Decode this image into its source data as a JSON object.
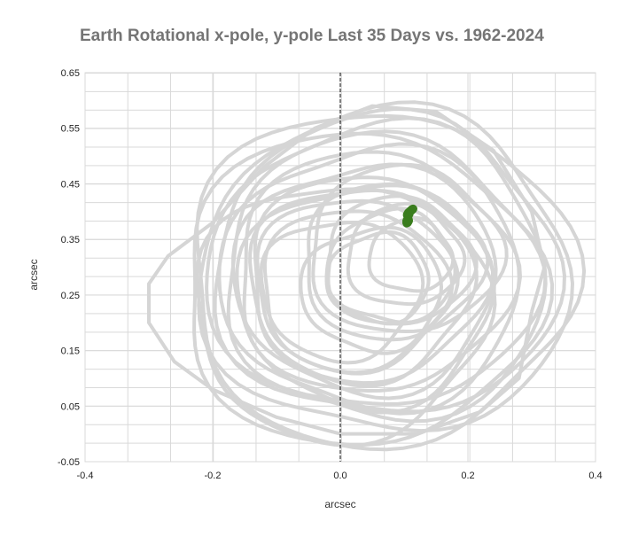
{
  "chart_data": {
    "type": "scatter",
    "title": "Earth Rotational x-pole, y-pole Last 35 Days vs. 1962-2024",
    "xlabel": "arcsec",
    "ylabel": "arcsec",
    "xlim": [
      -0.4,
      0.4
    ],
    "ylim": [
      -0.05,
      0.65
    ],
    "x_major_ticks": [
      -0.4,
      -0.2,
      0.0,
      0.2,
      0.4
    ],
    "x_tick_labels": [
      "-0.4",
      "-0.2",
      "0.0",
      "0.2",
      "0.4"
    ],
    "x_minor_step": 0.067,
    "y_ticks": [
      -0.05,
      0.05,
      0.15,
      0.25,
      0.35,
      0.45,
      0.55,
      0.65
    ],
    "y_tick_labels": [
      "-0.05",
      "0.05",
      "0.15",
      "0.25",
      "0.35",
      "0.45",
      "0.55",
      "0.65"
    ],
    "y_minor_step": 0.0333,
    "grid": true,
    "zero_line_x": 0.0,
    "legend": "none",
    "colors": {
      "history": "#d5d5d5",
      "recent": "#3a7d1e",
      "grid": "#d9d9d9",
      "zero_line": "#000000"
    },
    "series": [
      {
        "description_id": "history_1962_2024",
        "rendering": "dense_loops",
        "loops": [
          {
            "cx": 0.0,
            "cy": 0.26,
            "r": 0.125,
            "phase": 0.0
          },
          {
            "cx": 0.02,
            "cy": 0.27,
            "r": 0.155,
            "phase": 0.6
          },
          {
            "cx": 0.04,
            "cy": 0.28,
            "r": 0.185,
            "phase": 1.2
          },
          {
            "cx": 0.05,
            "cy": 0.29,
            "r": 0.215,
            "phase": 1.8
          },
          {
            "cx": 0.06,
            "cy": 0.29,
            "r": 0.245,
            "phase": 2.4
          },
          {
            "cx": 0.07,
            "cy": 0.3,
            "r": 0.27,
            "phase": 3.0
          },
          {
            "cx": 0.07,
            "cy": 0.29,
            "r": 0.29,
            "phase": 3.6
          },
          {
            "cx": 0.06,
            "cy": 0.29,
            "r": 0.265,
            "phase": 4.2
          },
          {
            "cx": 0.05,
            "cy": 0.28,
            "r": 0.235,
            "phase": 4.8
          },
          {
            "cx": 0.04,
            "cy": 0.28,
            "r": 0.205,
            "phase": 5.4
          },
          {
            "cx": 0.03,
            "cy": 0.27,
            "r": 0.175,
            "phase": 0.3
          },
          {
            "cx": 0.02,
            "cy": 0.26,
            "r": 0.145,
            "phase": 0.9
          },
          {
            "cx": 0.08,
            "cy": 0.31,
            "r": 0.14,
            "phase": 1.5
          },
          {
            "cx": 0.09,
            "cy": 0.31,
            "r": 0.115,
            "phase": 2.1
          },
          {
            "cx": 0.1,
            "cy": 0.32,
            "r": 0.09,
            "phase": 2.7
          },
          {
            "cx": 0.11,
            "cy": 0.32,
            "r": 0.065,
            "phase": 3.3
          },
          {
            "cx": 0.08,
            "cy": 0.3,
            "r": 0.1,
            "phase": 3.9
          },
          {
            "cx": 0.06,
            "cy": 0.28,
            "r": 0.08,
            "phase": 4.5
          },
          {
            "cx": 0.05,
            "cy": 0.26,
            "r": 0.11,
            "phase": 5.1
          },
          {
            "cx": 0.04,
            "cy": 0.25,
            "r": 0.2,
            "phase": 5.7
          },
          {
            "cx": 0.0,
            "cy": 0.22,
            "r": 0.23,
            "phase": 0.4
          },
          {
            "cx": 0.06,
            "cy": 0.28,
            "r": 0.3,
            "phase": 1.0
          },
          {
            "cx": 0.03,
            "cy": 0.26,
            "r": 0.28,
            "phase": 1.6
          },
          {
            "cx": 0.1,
            "cy": 0.33,
            "r": 0.15,
            "phase": 2.2
          }
        ],
        "outer_excursion": [
          [
            0.3,
            0.22
          ],
          [
            0.28,
            0.1
          ],
          [
            0.22,
            0.04
          ],
          [
            0.12,
            0.0
          ],
          [
            0.0,
            0.0
          ],
          [
            -0.1,
            0.03
          ],
          [
            -0.2,
            0.08
          ],
          [
            -0.26,
            0.13
          ],
          [
            -0.3,
            0.2
          ],
          [
            -0.3,
            0.27
          ],
          [
            -0.27,
            0.32
          ],
          [
            -0.2,
            0.38
          ],
          [
            -0.12,
            0.48
          ],
          [
            -0.04,
            0.55
          ],
          [
            0.05,
            0.59
          ],
          [
            0.15,
            0.58
          ],
          [
            0.24,
            0.51
          ],
          [
            0.3,
            0.4
          ],
          [
            0.32,
            0.3
          ],
          [
            0.3,
            0.22
          ]
        ]
      },
      {
        "description_id": "last_35_days",
        "points": [
          [
            0.112,
            0.405
          ],
          [
            0.11,
            0.403
          ],
          [
            0.108,
            0.401
          ],
          [
            0.106,
            0.399
          ],
          [
            0.105,
            0.397
          ],
          [
            0.104,
            0.395
          ],
          [
            0.104,
            0.393
          ],
          [
            0.105,
            0.391
          ],
          [
            0.106,
            0.389
          ],
          [
            0.107,
            0.387
          ],
          [
            0.108,
            0.385
          ],
          [
            0.108,
            0.383
          ],
          [
            0.107,
            0.381
          ],
          [
            0.106,
            0.379
          ],
          [
            0.104,
            0.378
          ],
          [
            0.103,
            0.38
          ],
          [
            0.103,
            0.383
          ],
          [
            0.104,
            0.386
          ],
          [
            0.106,
            0.389
          ],
          [
            0.107,
            0.392
          ],
          [
            0.108,
            0.395
          ],
          [
            0.109,
            0.398
          ],
          [
            0.11,
            0.4
          ],
          [
            0.111,
            0.402
          ],
          [
            0.113,
            0.404
          ],
          [
            0.114,
            0.406
          ],
          [
            0.115,
            0.405
          ],
          [
            0.114,
            0.403
          ],
          [
            0.112,
            0.401
          ],
          [
            0.11,
            0.399
          ],
          [
            0.109,
            0.396
          ],
          [
            0.108,
            0.393
          ],
          [
            0.107,
            0.39
          ],
          [
            0.106,
            0.386
          ],
          [
            0.105,
            0.383
          ]
        ]
      }
    ]
  }
}
